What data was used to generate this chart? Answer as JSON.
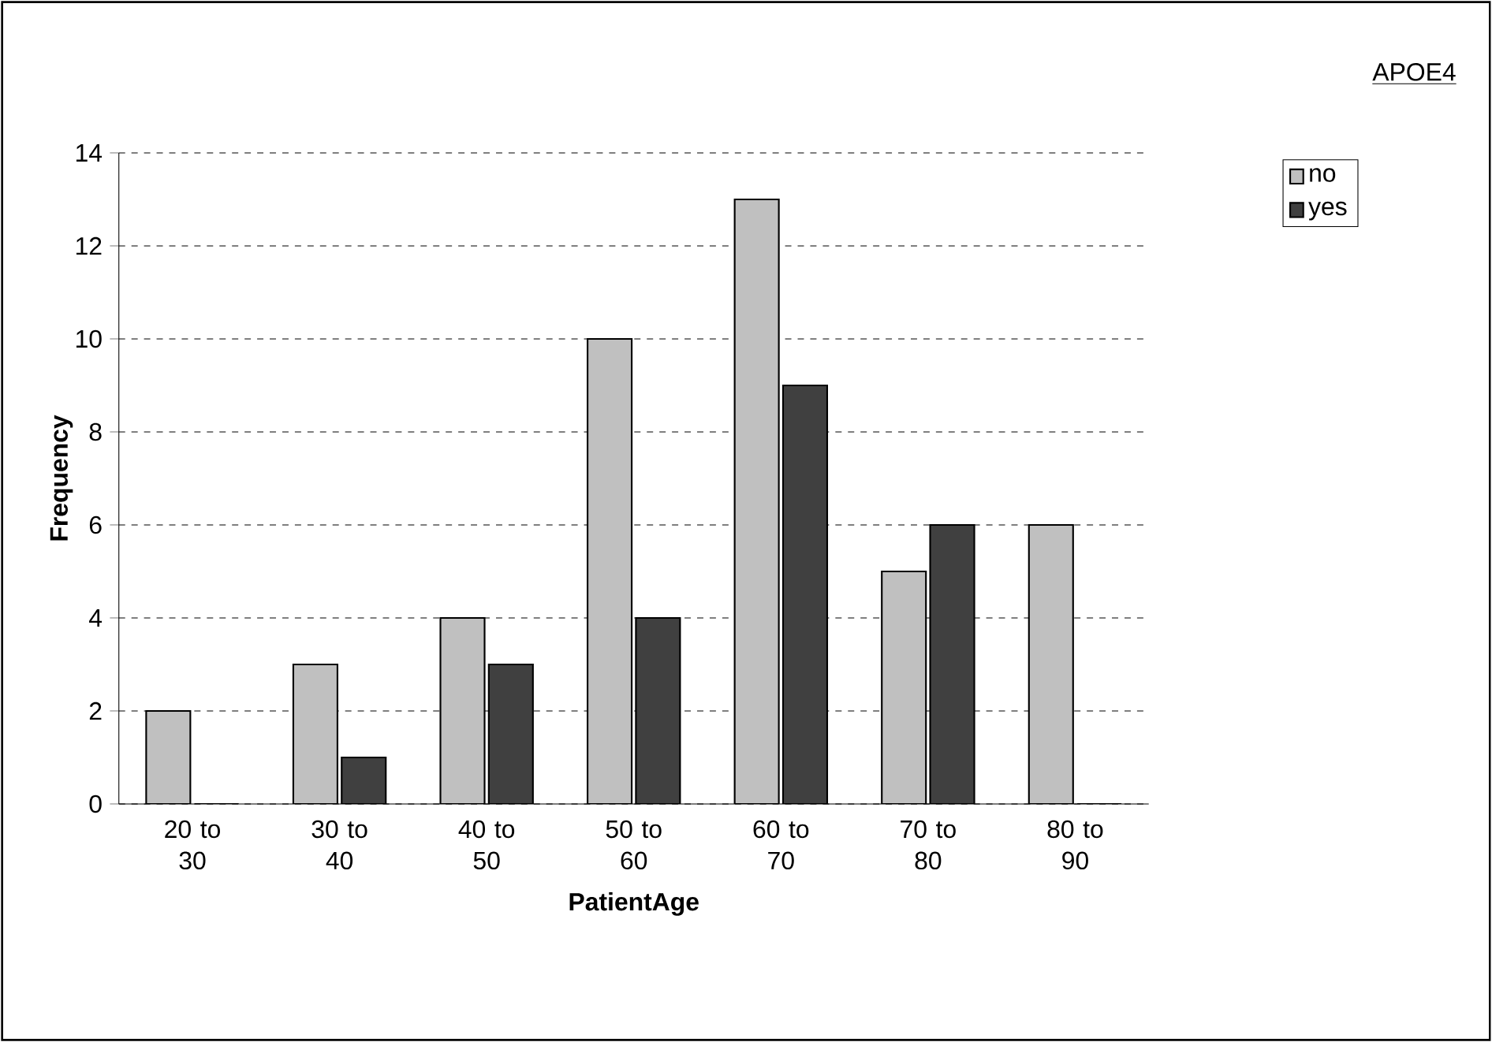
{
  "chart_data": {
    "type": "bar",
    "xlabel": "PatientAge",
    "ylabel": "Frequency",
    "legend_title": "APOE4",
    "categories": [
      "20 to 30",
      "30 to 40",
      "40 to 50",
      "50 to 60",
      "60 to 70",
      "70 to 80",
      "80 to 90"
    ],
    "series": [
      {
        "name": "no",
        "color": "#c0c0c0",
        "values": [
          2,
          3,
          4,
          10,
          13,
          5,
          6
        ]
      },
      {
        "name": "yes",
        "color": "#404040",
        "values": [
          0,
          1,
          3,
          4,
          9,
          6,
          0
        ]
      }
    ],
    "ylim": [
      0,
      14
    ],
    "yticks": [
      0,
      2,
      4,
      6,
      8,
      10,
      12,
      14
    ],
    "grid": "y",
    "legend": "right"
  }
}
